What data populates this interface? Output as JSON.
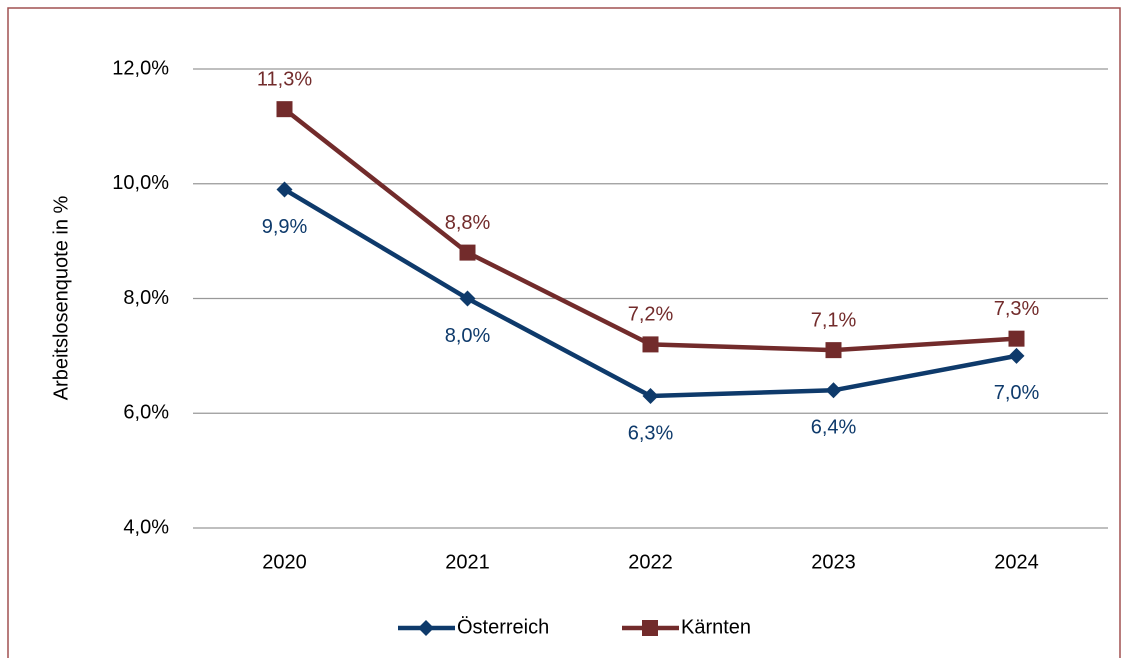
{
  "chart_data": {
    "type": "line",
    "y_label": "Arbeitslosenquote in %",
    "categories": [
      "2020",
      "2021",
      "2022",
      "2023",
      "2024"
    ],
    "series": [
      {
        "name": "Österreich",
        "color": "#0e3a6b",
        "marker": "diamond",
        "values": [
          9.9,
          8.0,
          6.3,
          6.4,
          7.0
        ],
        "value_labels": [
          "9,9%",
          "8,0%",
          "6,3%",
          "6,4%",
          "7,0%"
        ],
        "label_position": "below"
      },
      {
        "name": "Kärnten",
        "color": "#722b2b",
        "marker": "square",
        "values": [
          11.3,
          8.8,
          7.2,
          7.1,
          7.3
        ],
        "value_labels": [
          "11,3%",
          "8,8%",
          "7,2%",
          "7,1%",
          "7,3%"
        ],
        "label_position": "above"
      }
    ],
    "ylim": [
      4,
      12
    ],
    "yticks": [
      {
        "value": 4,
        "label": "4,0%"
      },
      {
        "value": 6,
        "label": "6,0%"
      },
      {
        "value": 8,
        "label": "8,0%"
      },
      {
        "value": 10,
        "label": "10,0%"
      },
      {
        "value": 12,
        "label": "12,0%"
      }
    ],
    "grid": true,
    "legend": "bottom"
  }
}
